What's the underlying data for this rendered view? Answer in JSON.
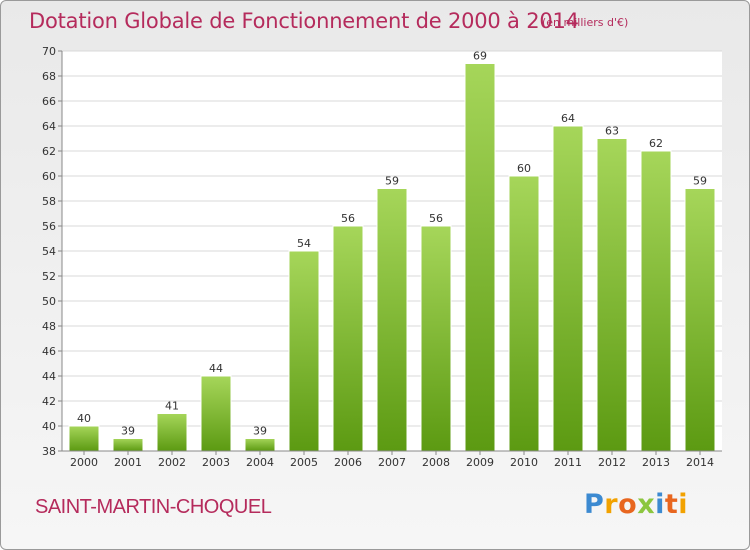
{
  "header": {
    "title": "Dotation Globale de Fonctionnement de 2000 à 2014",
    "unit": "(en milliers d'€)"
  },
  "footer": {
    "commune": "SAINT-MARTIN-CHOQUEL",
    "logo": "Proxiti"
  },
  "colors": {
    "bar_top": "#a6d65a",
    "bar_bottom": "#5c9a12",
    "title": "#b52b5c"
  },
  "chart_data": {
    "type": "bar",
    "title": "Dotation Globale de Fonctionnement de 2000 à 2014",
    "subtitle": "(en milliers d'€)",
    "categories": [
      "2000",
      "2001",
      "2002",
      "2003",
      "2004",
      "2005",
      "2006",
      "2007",
      "2008",
      "2009",
      "2010",
      "2011",
      "2012",
      "2013",
      "2014"
    ],
    "values": [
      40,
      39,
      41,
      44,
      39,
      54,
      56,
      59,
      56,
      69,
      60,
      64,
      63,
      62,
      59
    ],
    "data_labels": [
      "40",
      "39",
      "41",
      "44",
      "39",
      "54",
      "56",
      "59",
      "56",
      "69",
      "60",
      "64",
      "63",
      "62",
      "59"
    ],
    "yticks": [
      "38",
      "40",
      "42",
      "44",
      "46",
      "48",
      "50",
      "52",
      "54",
      "56",
      "58",
      "60",
      "62",
      "64",
      "66",
      "68",
      "70"
    ],
    "ylim": [
      38,
      70
    ],
    "xlabel": "",
    "ylabel": "",
    "grid": true,
    "legend": "none"
  }
}
